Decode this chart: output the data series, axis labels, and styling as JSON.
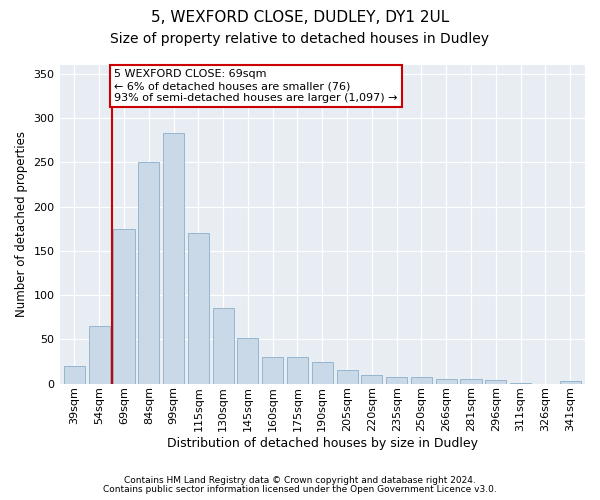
{
  "title1": "5, WEXFORD CLOSE, DUDLEY, DY1 2UL",
  "title2": "Size of property relative to detached houses in Dudley",
  "xlabel": "Distribution of detached houses by size in Dudley",
  "ylabel": "Number of detached properties",
  "categories": [
    "39sqm",
    "54sqm",
    "69sqm",
    "84sqm",
    "99sqm",
    "115sqm",
    "130sqm",
    "145sqm",
    "160sqm",
    "175sqm",
    "190sqm",
    "205sqm",
    "220sqm",
    "235sqm",
    "250sqm",
    "266sqm",
    "281sqm",
    "296sqm",
    "311sqm",
    "326sqm",
    "341sqm"
  ],
  "values": [
    20,
    65,
    175,
    250,
    283,
    170,
    85,
    52,
    30,
    30,
    24,
    15,
    10,
    8,
    8,
    5,
    5,
    4,
    1,
    0,
    3
  ],
  "bar_color": "#c9d9e8",
  "bar_edge_color": "#8bafc8",
  "vline_color": "#cc0000",
  "annotation_text": "5 WEXFORD CLOSE: 69sqm\n← 6% of detached houses are smaller (76)\n93% of semi-detached houses are larger (1,097) →",
  "annotation_box_color": "#ffffff",
  "annotation_box_edge": "#cc0000",
  "fig_bg_color": "#ffffff",
  "plot_bg_color": "#e8edf4",
  "grid_color": "#ffffff",
  "footer1": "Contains HM Land Registry data © Crown copyright and database right 2024.",
  "footer2": "Contains public sector information licensed under the Open Government Licence v3.0.",
  "ylim": [
    0,
    360
  ],
  "yticks": [
    0,
    50,
    100,
    150,
    200,
    250,
    300,
    350
  ],
  "title1_fontsize": 11,
  "title2_fontsize": 10,
  "xlabel_fontsize": 9,
  "ylabel_fontsize": 8.5,
  "tick_fontsize": 8,
  "annot_fontsize": 8,
  "footer_fontsize": 6.5
}
